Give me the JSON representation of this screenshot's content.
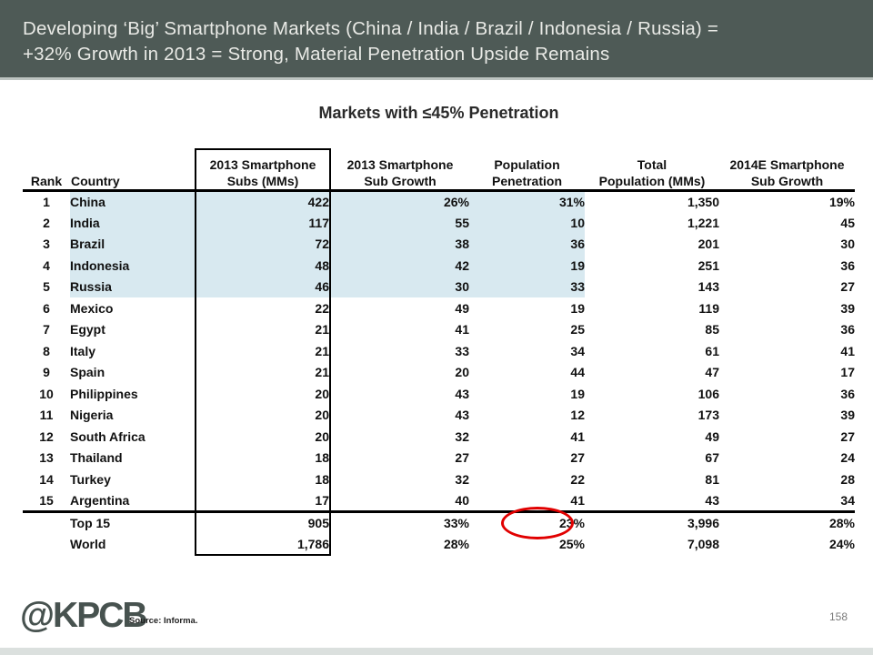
{
  "slide": {
    "title_line1": "Developing ‘Big’ Smartphone Markets (China / India / Brazil / Indonesia / Russia) =",
    "title_line2": "+32% Growth in 2013 = Strong, Material Penetration Upside Remains",
    "subtitle": "Markets with ≤45% Penetration",
    "logo": "@KPCB",
    "source": "Source: Informa.",
    "page_number": "158"
  },
  "colors": {
    "header_bg": "#4e5a56",
    "header_text": "#e9eae6",
    "row_highlight": "#d8e9f0",
    "circle_annotation": "#e10000",
    "logo_color": "#47524f"
  },
  "chart_data": {
    "type": "table",
    "title": "Markets with ≤45% Penetration",
    "columns": [
      {
        "id": "rank",
        "line1": "",
        "line2": "Rank"
      },
      {
        "id": "country",
        "line1": "",
        "line2": "Country"
      },
      {
        "id": "subs",
        "line1": "2013 Smartphone",
        "line2": "Subs (MMs)"
      },
      {
        "id": "growth-2013",
        "line1": "2013 Smartphone",
        "line2": "Sub Growth"
      },
      {
        "id": "penetration",
        "line1": "Population",
        "line2": "Penetration"
      },
      {
        "id": "population",
        "line1": "Total",
        "line2": "Population (MMs)"
      },
      {
        "id": "growth-2014e",
        "line1": "2014E Smartphone",
        "line2": "Sub Growth"
      }
    ],
    "rows": [
      {
        "rank": "1",
        "country": "China",
        "subs": "422",
        "growth_2013": "26%",
        "penetration": "31%",
        "population": "1,350",
        "growth_2014e": "19%",
        "highlight": true
      },
      {
        "rank": "2",
        "country": "India",
        "subs": "117",
        "growth_2013": "55",
        "penetration": "10",
        "population": "1,221",
        "growth_2014e": "45",
        "highlight": true
      },
      {
        "rank": "3",
        "country": "Brazil",
        "subs": "72",
        "growth_2013": "38",
        "penetration": "36",
        "population": "201",
        "growth_2014e": "30",
        "highlight": true
      },
      {
        "rank": "4",
        "country": "Indonesia",
        "subs": "48",
        "growth_2013": "42",
        "penetration": "19",
        "population": "251",
        "growth_2014e": "36",
        "highlight": true
      },
      {
        "rank": "5",
        "country": "Russia",
        "subs": "46",
        "growth_2013": "30",
        "penetration": "33",
        "population": "143",
        "growth_2014e": "27",
        "highlight": true
      },
      {
        "rank": "6",
        "country": "Mexico",
        "subs": "22",
        "growth_2013": "49",
        "penetration": "19",
        "population": "119",
        "growth_2014e": "39",
        "highlight": false
      },
      {
        "rank": "7",
        "country": "Egypt",
        "subs": "21",
        "growth_2013": "41",
        "penetration": "25",
        "population": "85",
        "growth_2014e": "36",
        "highlight": false
      },
      {
        "rank": "8",
        "country": "Italy",
        "subs": "21",
        "growth_2013": "33",
        "penetration": "34",
        "population": "61",
        "growth_2014e": "41",
        "highlight": false
      },
      {
        "rank": "9",
        "country": "Spain",
        "subs": "21",
        "growth_2013": "20",
        "penetration": "44",
        "population": "47",
        "growth_2014e": "17",
        "highlight": false
      },
      {
        "rank": "10",
        "country": "Philippines",
        "subs": "20",
        "growth_2013": "43",
        "penetration": "19",
        "population": "106",
        "growth_2014e": "36",
        "highlight": false
      },
      {
        "rank": "11",
        "country": "Nigeria",
        "subs": "20",
        "growth_2013": "43",
        "penetration": "12",
        "population": "173",
        "growth_2014e": "39",
        "highlight": false
      },
      {
        "rank": "12",
        "country": "South Africa",
        "subs": "20",
        "growth_2013": "32",
        "penetration": "41",
        "population": "49",
        "growth_2014e": "27",
        "highlight": false
      },
      {
        "rank": "13",
        "country": "Thailand",
        "subs": "18",
        "growth_2013": "27",
        "penetration": "27",
        "population": "67",
        "growth_2014e": "24",
        "highlight": false
      },
      {
        "rank": "14",
        "country": "Turkey",
        "subs": "18",
        "growth_2013": "32",
        "penetration": "22",
        "population": "81",
        "growth_2014e": "28",
        "highlight": false
      },
      {
        "rank": "15",
        "country": "Argentina",
        "subs": "17",
        "growth_2013": "40",
        "penetration": "41",
        "population": "43",
        "growth_2014e": "34",
        "highlight": false
      }
    ],
    "summary_rows": [
      {
        "rank": "",
        "country": "Top 15",
        "subs": "905",
        "growth_2013": "33%",
        "penetration": "23%",
        "population": "3,996",
        "growth_2014e": "28%",
        "circled": "penetration"
      },
      {
        "rank": "",
        "country": "World",
        "subs": "1,786",
        "growth_2013": "28%",
        "penetration": "25%",
        "population": "7,098",
        "growth_2014e": "24%"
      }
    ],
    "highlighted_countries": [
      "China",
      "India",
      "Brazil",
      "Indonesia",
      "Russia"
    ],
    "annotation": "Top 15 population penetration of 23% is circled in red"
  }
}
